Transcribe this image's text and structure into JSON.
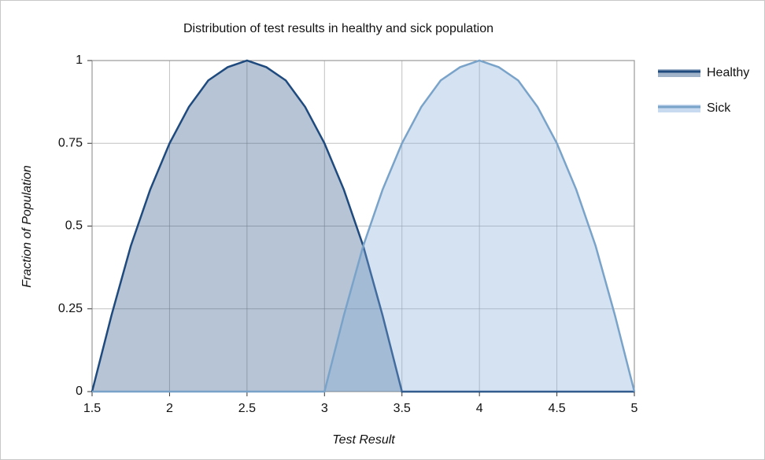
{
  "chart_data": {
    "type": "area",
    "title": "Distribution of test results in healthy and sick population",
    "x_label": "Test Result",
    "y_label": "Fraction of Population",
    "x": [
      1.5,
      1.625,
      1.75,
      1.875,
      2,
      2.125,
      2.25,
      2.375,
      2.5,
      2.625,
      2.75,
      2.875,
      3,
      3.125,
      3.25,
      3.375,
      3.5,
      3.625,
      3.75,
      3.875,
      4,
      4.125,
      4.25,
      4.375,
      4.5,
      4.625,
      4.75,
      4.875,
      5
    ],
    "series": [
      {
        "name": "Healthy",
        "color": "#1f4a7e",
        "fill": "#2f5686",
        "values": [
          0,
          0.23,
          0.44,
          0.61,
          0.75,
          0.86,
          0.94,
          0.98,
          1,
          0.98,
          0.94,
          0.86,
          0.75,
          0.61,
          0.44,
          0.23,
          0,
          0,
          0,
          0,
          0,
          0,
          0,
          0,
          0,
          0,
          0,
          0,
          0
        ]
      },
      {
        "name": "Sick",
        "color": "#7aa3c9",
        "fill": "#84acdb",
        "values": [
          0,
          0,
          0,
          0,
          0,
          0,
          0,
          0,
          0,
          0,
          0,
          0,
          0,
          0.23,
          0.44,
          0.61,
          0.75,
          0.86,
          0.94,
          0.98,
          1,
          0.98,
          0.94,
          0.86,
          0.75,
          0.61,
          0.44,
          0.23,
          0
        ]
      }
    ],
    "xlim": [
      1.5,
      5
    ],
    "xticks": [
      1.5,
      2,
      2.5,
      3,
      3.5,
      4,
      4.5,
      5
    ],
    "ylim": [
      0,
      1
    ],
    "yticks": [
      0,
      0.25,
      0.5,
      0.75,
      1
    ],
    "grid": true,
    "legend": "right"
  }
}
